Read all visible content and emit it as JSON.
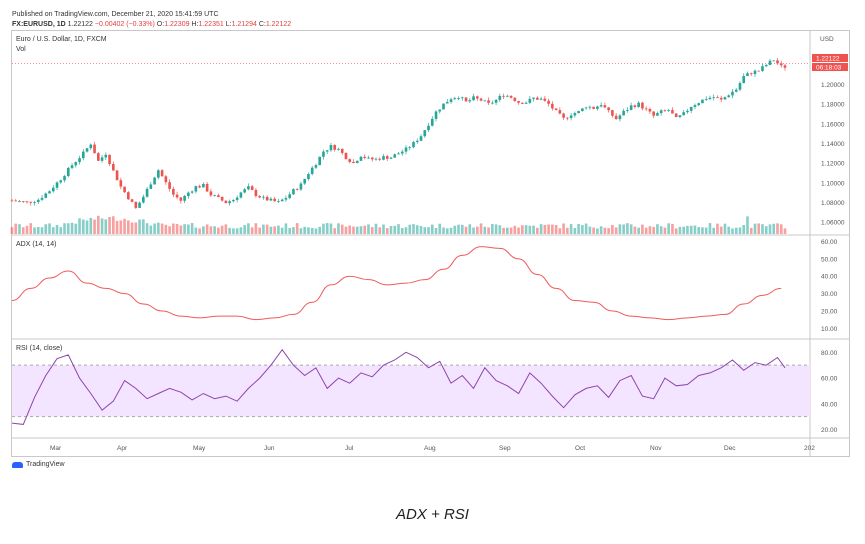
{
  "header": {
    "published": "Published on TradingView.com, December 21, 2020 15:41:59 UTC",
    "symbol": "FX:EURUSD, 1D",
    "last": "1.22122",
    "change": "−0.00402 (−0.33%)",
    "o_label": "O:",
    "o": "1.22309",
    "h_label": "H:",
    "h": "1.22351",
    "l_label": "L:",
    "l": "1.21294",
    "c_label": "C:",
    "c": "1.22122"
  },
  "footer": {
    "brand": "TradingView"
  },
  "caption": "ADX + RSI",
  "colors": {
    "up": "#26a69a",
    "down": "#ef5350",
    "adx": "#f05a5a",
    "rsi": "#8e44ad",
    "rsi_band": "#f3e5ff"
  },
  "chart_data": [
    {
      "type": "candlestick",
      "title": "Euro / U.S. Dollar, 1D, FXCM",
      "sub_label": "Vol",
      "currency": "USD",
      "last_price_label": "1.22122",
      "countdown_label": "06:18:03",
      "x_ticks": [
        "Mar",
        "Apr",
        "May",
        "Jun",
        "Jul",
        "Aug",
        "Sep",
        "Oct",
        "Nov",
        "Dec",
        "202"
      ],
      "y_ticks": [
        "1.20000",
        "1.18000",
        "1.16000",
        "1.14000",
        "1.12000",
        "1.10000",
        "1.08000",
        "1.06000"
      ],
      "ylim": [
        1.05,
        1.235
      ],
      "close_path": [
        [
          0,
          1.082
        ],
        [
          4,
          1.08
        ],
        [
          7,
          1.083
        ],
        [
          10,
          1.092
        ],
        [
          13,
          1.104
        ],
        [
          16,
          1.118
        ],
        [
          19,
          1.13
        ],
        [
          21,
          1.14
        ],
        [
          23,
          1.122
        ],
        [
          25,
          1.13
        ],
        [
          27,
          1.112
        ],
        [
          29,
          1.096
        ],
        [
          31,
          1.085
        ],
        [
          33,
          1.074
        ],
        [
          35,
          1.086
        ],
        [
          37,
          1.1
        ],
        [
          39,
          1.113
        ],
        [
          41,
          1.1
        ],
        [
          43,
          1.088
        ],
        [
          45,
          1.082
        ],
        [
          47,
          1.09
        ],
        [
          49,
          1.096
        ],
        [
          51,
          1.097
        ],
        [
          53,
          1.088
        ],
        [
          55,
          1.084
        ],
        [
          57,
          1.08
        ],
        [
          59,
          1.083
        ],
        [
          61,
          1.09
        ],
        [
          63,
          1.095
        ],
        [
          65,
          1.088
        ],
        [
          67,
          1.084
        ],
        [
          69,
          1.082
        ],
        [
          71,
          1.08
        ],
        [
          73,
          1.085
        ],
        [
          75,
          1.092
        ],
        [
          77,
          1.098
        ],
        [
          79,
          1.11
        ],
        [
          81,
          1.12
        ],
        [
          83,
          1.132
        ],
        [
          85,
          1.137
        ],
        [
          87,
          1.134
        ],
        [
          89,
          1.126
        ],
        [
          91,
          1.12
        ],
        [
          93,
          1.128
        ],
        [
          95,
          1.124
        ],
        [
          97,
          1.124
        ],
        [
          99,
          1.126
        ],
        [
          101,
          1.126
        ],
        [
          103,
          1.13
        ],
        [
          105,
          1.134
        ],
        [
          107,
          1.14
        ],
        [
          109,
          1.148
        ],
        [
          111,
          1.16
        ],
        [
          113,
          1.172
        ],
        [
          115,
          1.18
        ],
        [
          117,
          1.186
        ],
        [
          119,
          1.188
        ],
        [
          121,
          1.182
        ],
        [
          123,
          1.186
        ],
        [
          125,
          1.184
        ],
        [
          127,
          1.18
        ],
        [
          129,
          1.184
        ],
        [
          131,
          1.19
        ],
        [
          133,
          1.187
        ],
        [
          135,
          1.182
        ],
        [
          137,
          1.182
        ],
        [
          139,
          1.186
        ],
        [
          141,
          1.185
        ],
        [
          143,
          1.18
        ],
        [
          145,
          1.172
        ],
        [
          147,
          1.165
        ],
        [
          149,
          1.17
        ],
        [
          151,
          1.172
        ],
        [
          153,
          1.178
        ],
        [
          155,
          1.176
        ],
        [
          157,
          1.18
        ],
        [
          159,
          1.172
        ],
        [
          161,
          1.165
        ],
        [
          163,
          1.172
        ],
        [
          165,
          1.178
        ],
        [
          167,
          1.18
        ],
        [
          169,
          1.174
        ],
        [
          171,
          1.168
        ],
        [
          173,
          1.172
        ],
        [
          175,
          1.174
        ],
        [
          177,
          1.165
        ],
        [
          179,
          1.17
        ],
        [
          181,
          1.178
        ],
        [
          183,
          1.182
        ],
        [
          185,
          1.186
        ],
        [
          187,
          1.187
        ],
        [
          189,
          1.184
        ],
        [
          191,
          1.19
        ],
        [
          193,
          1.195
        ],
        [
          195,
          1.208
        ],
        [
          197,
          1.212
        ],
        [
          199,
          1.214
        ],
        [
          201,
          1.22
        ],
        [
          203,
          1.225
        ],
        [
          205,
          1.218
        ]
      ],
      "volume_range": [
        0,
        1
      ]
    },
    {
      "type": "line",
      "title": "ADX (14, 14)",
      "y_ticks": [
        "60.00",
        "50.00",
        "40.00",
        "30.00",
        "20.00",
        "10.00"
      ],
      "ylim": [
        5,
        62
      ],
      "x": [
        0,
        5,
        10,
        15,
        20,
        25,
        30,
        35,
        40,
        45,
        50,
        55,
        60,
        65,
        70,
        75,
        80,
        85,
        90,
        95,
        100,
        105,
        110,
        115,
        120,
        125,
        130,
        135,
        140,
        145,
        150,
        155,
        160,
        165,
        170,
        175,
        180,
        185,
        190,
        195,
        200,
        205
      ],
      "values": [
        26,
        33,
        39,
        43,
        36,
        33,
        30,
        24,
        20,
        17,
        16,
        17,
        17,
        15,
        16,
        18,
        25,
        35,
        40,
        38,
        35,
        36,
        38,
        44,
        52,
        57,
        56,
        50,
        41,
        33,
        26,
        25,
        20,
        17,
        16,
        15,
        16,
        17,
        18,
        24,
        29,
        33
      ]
    },
    {
      "type": "line",
      "title": "RSI (14, close)",
      "y_ticks": [
        "80.00",
        "60.00",
        "40.00",
        "20.00"
      ],
      "ylim": [
        15,
        88
      ],
      "band": [
        30,
        70
      ],
      "x": [
        0,
        3,
        6,
        9,
        12,
        15,
        18,
        21,
        24,
        27,
        30,
        33,
        36,
        39,
        42,
        45,
        48,
        51,
        54,
        57,
        60,
        63,
        66,
        69,
        72,
        75,
        78,
        81,
        84,
        87,
        90,
        93,
        96,
        99,
        102,
        105,
        108,
        111,
        114,
        117,
        120,
        123,
        126,
        129,
        132,
        135,
        138,
        141,
        144,
        147,
        150,
        153,
        156,
        159,
        162,
        165,
        168,
        171,
        174,
        177,
        180,
        183,
        186,
        189,
        192,
        195,
        198,
        201,
        204,
        206
      ],
      "values": [
        25,
        24,
        45,
        62,
        75,
        78,
        60,
        48,
        35,
        42,
        58,
        52,
        44,
        48,
        52,
        49,
        43,
        48,
        44,
        46,
        42,
        52,
        60,
        70,
        82,
        70,
        62,
        68,
        52,
        60,
        56,
        64,
        61,
        70,
        74,
        80,
        76,
        68,
        73,
        56,
        62,
        52,
        68,
        58,
        54,
        48,
        64,
        56,
        46,
        37,
        47,
        52,
        54,
        45,
        58,
        62,
        46,
        44,
        60,
        54,
        55,
        62,
        64,
        68,
        74,
        66,
        72,
        70,
        76,
        68
      ]
    }
  ]
}
